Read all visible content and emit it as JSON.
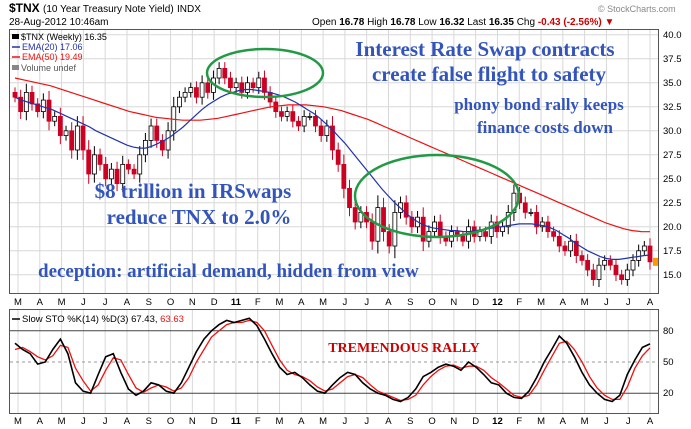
{
  "header": {
    "symbol": "$TNX",
    "description": "(10 Year Treasury Note Yield)",
    "exchange": "INDX",
    "datetime": "28-Aug-2012 10:46am",
    "watermark": "© StockCharts.com",
    "open_label": "Open",
    "open": "16.78",
    "high_label": "High",
    "high": "16.78",
    "low_label": "Low",
    "low": "16.32",
    "last_label": "Last",
    "last": "16.35",
    "chg_label": "Chg",
    "chg": "-0.43 (-2.56%)"
  },
  "legend": {
    "price": "$TNX (Weekly) 16.35",
    "ema20": "EMA(20) 17.06",
    "ema50": "EMA(50) 19.49",
    "volume": "Volume undef"
  },
  "annotations": {
    "line1": "Interest Rate Swap contracts",
    "line2": "create false flight to safety",
    "line3": "phony bond rally keeps",
    "line4": "finance costs down",
    "line5": "$8 trillion in IRSwaps",
    "line6": "reduce TNX to 2.0%",
    "line7": "deception: artificial demand, hidden from view",
    "rally": "TREMENDOUS RALLY"
  },
  "sto_legend": {
    "label": "Slow STO %K(14) %D(3) 67.43,",
    "d_value": "63.63"
  },
  "colors": {
    "up": "#000000",
    "down": "#cc0022",
    "ema20": "#2233aa",
    "ema50": "#ee1111",
    "annotation": "#3355bb",
    "rally": "#cc0000",
    "ellipse": "#229944",
    "grid": "#d8d8d8"
  },
  "chart_data": [
    {
      "type": "candlestick",
      "title": "$TNX (10 Year Treasury Note Yield)",
      "ylim": [
        13,
        40.5
      ],
      "y_ticks": [
        15.0,
        17.5,
        20.0,
        22.5,
        25.0,
        27.5,
        30.0,
        32.5,
        35.0,
        37.5,
        40.0
      ],
      "x_ticks": [
        "M",
        "A",
        "M",
        "J",
        "J",
        "A",
        "S",
        "O",
        "N",
        "D",
        "11",
        "F",
        "M",
        "A",
        "M",
        "J",
        "J",
        "A",
        "S",
        "O",
        "N",
        "D",
        "12",
        "F",
        "M",
        "A",
        "M",
        "J",
        "J",
        "A"
      ],
      "close": [
        33.5,
        32.0,
        34.0,
        32.8,
        32.0,
        33.2,
        31.0,
        31.5,
        29.5,
        30.0,
        28.0,
        30.5,
        28.0,
        25.5,
        27.5,
        26.5,
        25.0,
        26.0,
        24.5,
        26.5,
        26.0,
        25.5,
        27.5,
        29.0,
        30.5,
        29.0,
        28.0,
        30.0,
        32.5,
        33.5,
        34.0,
        34.5,
        33.5,
        35.0,
        34.0,
        35.5,
        36.5,
        35.5,
        34.5,
        35.0,
        34.0,
        35.0,
        34.5,
        35.5,
        34.0,
        33.0,
        32.0,
        31.5,
        32.0,
        31.0,
        30.5,
        31.5,
        31.5,
        30.5,
        29.5,
        30.5,
        28.0,
        26.5,
        24.0,
        22.0,
        20.5,
        21.5,
        20.5,
        18.5,
        22.0,
        19.5,
        18.0,
        21.5,
        22.5,
        21.0,
        20.0,
        21.0,
        18.5,
        19.5,
        20.5,
        19.0,
        18.5,
        19.5,
        19.0,
        18.5,
        20.0,
        19.0,
        19.5,
        19.0,
        20.5,
        19.5,
        20.0,
        21.5,
        23.5,
        22.5,
        21.5,
        21.5,
        20.0,
        20.5,
        19.5,
        19.0,
        18.0,
        17.5,
        18.5,
        17.0,
        16.5,
        15.5,
        14.5,
        16.0,
        16.5,
        16.0,
        15.0,
        14.5,
        15.5,
        16.5,
        17.5,
        18.0,
        16.35
      ],
      "series": [
        {
          "name": "EMA(20) 17.06",
          "values": [
            33.5,
            33.2,
            33.0,
            32.8,
            32.6,
            32.4,
            32.2,
            31.9,
            31.6,
            31.3,
            31.0,
            30.7,
            30.4,
            30.0,
            29.7,
            29.4,
            29.1,
            28.8,
            28.5,
            28.3,
            28.2,
            28.2,
            28.4,
            28.7,
            29.0,
            29.4,
            29.9,
            30.4,
            31.0,
            31.6,
            32.2,
            32.7,
            33.1,
            33.5,
            33.8,
            34.0,
            34.2,
            34.3,
            34.3,
            34.2,
            34.1,
            34.0,
            33.8,
            33.6,
            33.3,
            33.0,
            32.6,
            32.2,
            31.8,
            31.3,
            30.7,
            30.1,
            29.4,
            28.7,
            27.9,
            27.1,
            26.3,
            25.5,
            24.7,
            23.9,
            23.2,
            22.5,
            21.9,
            21.3,
            20.8,
            20.4,
            20.1,
            19.9,
            19.8,
            19.7,
            19.6,
            19.6,
            19.5,
            19.5,
            19.6,
            19.7,
            19.8,
            19.9,
            20.0,
            20.1,
            20.2,
            20.3,
            20.3,
            20.3,
            20.2,
            20.1,
            19.9,
            19.6,
            19.2,
            18.8,
            18.3,
            17.9,
            17.5,
            17.2,
            16.9,
            16.7,
            16.6,
            16.6,
            16.7,
            16.8,
            16.9,
            17.0,
            17.06
          ]
        },
        {
          "name": "EMA(50) 19.49",
          "values": [
            35.5,
            35.3,
            35.1,
            34.9,
            34.7,
            34.4,
            34.1,
            33.8,
            33.5,
            33.2,
            32.9,
            32.6,
            32.3,
            32.0,
            31.8,
            31.6,
            31.4,
            31.3,
            31.2,
            31.1,
            31.1,
            31.1,
            31.2,
            31.3,
            31.5,
            31.7,
            31.9,
            32.1,
            32.3,
            32.5,
            32.6,
            32.7,
            32.7,
            32.7,
            32.6,
            32.5,
            32.3,
            32.1,
            31.8,
            31.5,
            31.2,
            30.8,
            30.4,
            30.0,
            29.6,
            29.2,
            28.8,
            28.4,
            28.0,
            27.6,
            27.2,
            26.8,
            26.4,
            26.0,
            25.6,
            25.2,
            24.8,
            24.4,
            24.0,
            23.6,
            23.2,
            22.8,
            22.4,
            22.0,
            21.6,
            21.2,
            20.8,
            20.4,
            20.1,
            19.8,
            19.6,
            19.5,
            19.49
          ]
        }
      ]
    },
    {
      "type": "line",
      "title": "Slow STO %K(14) %D(3)",
      "ylim": [
        0,
        100
      ],
      "y_ticks": [
        20,
        50,
        80
      ],
      "series": [
        {
          "name": "%K",
          "values": [
            68,
            62,
            58,
            48,
            50,
            62,
            72,
            58,
            30,
            22,
            20,
            38,
            55,
            58,
            40,
            24,
            18,
            22,
            30,
            28,
            22,
            20,
            30,
            45,
            60,
            72,
            80,
            86,
            90,
            88,
            90,
            92,
            85,
            72,
            58,
            45,
            38,
            40,
            35,
            28,
            22,
            20,
            28,
            35,
            40,
            38,
            30,
            24,
            20,
            18,
            14,
            12,
            16,
            24,
            36,
            40,
            45,
            48,
            46,
            42,
            50,
            45,
            38,
            30,
            28,
            20,
            16,
            15,
            22,
            35,
            50,
            62,
            75,
            68,
            55,
            40,
            28,
            20,
            14,
            12,
            18,
            38,
            52,
            64,
            67.43
          ]
        },
        {
          "name": "%D",
          "values": [
            62,
            64,
            60,
            55,
            52,
            56,
            66,
            64,
            44,
            32,
            22,
            28,
            42,
            54,
            52,
            38,
            25,
            21,
            25,
            28,
            26,
            22,
            25,
            35,
            50,
            62,
            74,
            80,
            86,
            88,
            88,
            90,
            88,
            80,
            66,
            52,
            42,
            38,
            36,
            32,
            26,
            22,
            24,
            30,
            36,
            38,
            35,
            28,
            22,
            19,
            16,
            13,
            14,
            18,
            28,
            36,
            42,
            46,
            47,
            44,
            46,
            46,
            42,
            35,
            30,
            24,
            18,
            16,
            18,
            28,
            42,
            55,
            68,
            70,
            62,
            50,
            36,
            25,
            18,
            14,
            14,
            26,
            44,
            56,
            63.63
          ]
        }
      ]
    }
  ]
}
